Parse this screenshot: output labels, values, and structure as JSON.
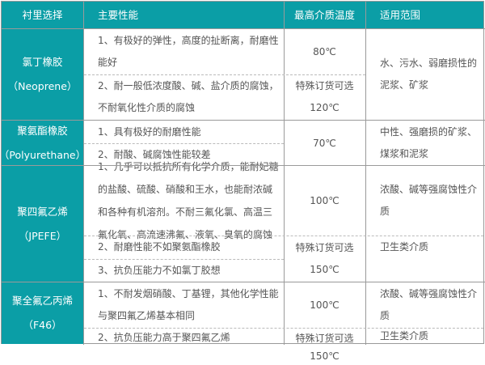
{
  "header": {
    "col1": "衬里选择",
    "col2": "主要性能",
    "col3": "最高介质温度",
    "col4": "适用范围"
  },
  "rows": [
    {
      "name": "氯丁橡胶",
      "code": "（Neoprene）",
      "props": [
        "1、有极好的弹性，高度的扯断离，耐磨性能好",
        "2、耐一般低浓度酸、碱、盐介质的腐蚀，不耐氧化性介质的腐蚀"
      ],
      "temp": [
        "80℃",
        "特殊订货可选",
        "120℃"
      ],
      "scope": [
        "水、污水、弱磨损性的泥浆、矿浆"
      ]
    },
    {
      "name": "聚氨酯橡胶",
      "code": "（Polyurethane）",
      "props": [
        "1、具有极好的耐磨性能",
        "2、耐酸、碱腐蚀性能较差"
      ],
      "temp": [
        "70℃"
      ],
      "scope": [
        "中性、强磨损的矿浆、煤浆和泥浆"
      ]
    },
    {
      "name": "聚四氟乙烯",
      "code": "（JPEFE）",
      "props": [
        "1、几乎可以抵抗所有化学介质，能耐妃糖的盐酸、硫酸、硝酸和王水，也能耐浓碱和各种有机溶剂。不耐三氟化氯、高温三氟化氧、高流速沸氟、液氧、臭氧的腐蚀",
        "2、耐磨性能不如聚氨酯橡胶",
        "3、抗负压能力不如氯丁胶想"
      ],
      "temp": [
        "100℃",
        "特殊订货可选",
        "150℃"
      ],
      "scope": [
        "浓酸、碱等强腐蚀性介质",
        "卫生类介质"
      ]
    },
    {
      "name": "聚全氟乙丙烯",
      "code": "（F46）",
      "props": [
        "1、不耐发烟硝酸、丁基锂，其他化学性能与聚四氟乙烯基本相同",
        "2、抗负压能力高于聚四氟乙烯"
      ],
      "temp": [
        "100℃",
        "特殊订货可选",
        "150℃"
      ],
      "scope": [
        "浓酸、碱等强腐蚀性介质",
        "卫生类介质"
      ]
    }
  ],
  "colors": {
    "header_bg": "#0b9ea6",
    "header_text": "#ffffff",
    "body_text": "#555555"
  }
}
